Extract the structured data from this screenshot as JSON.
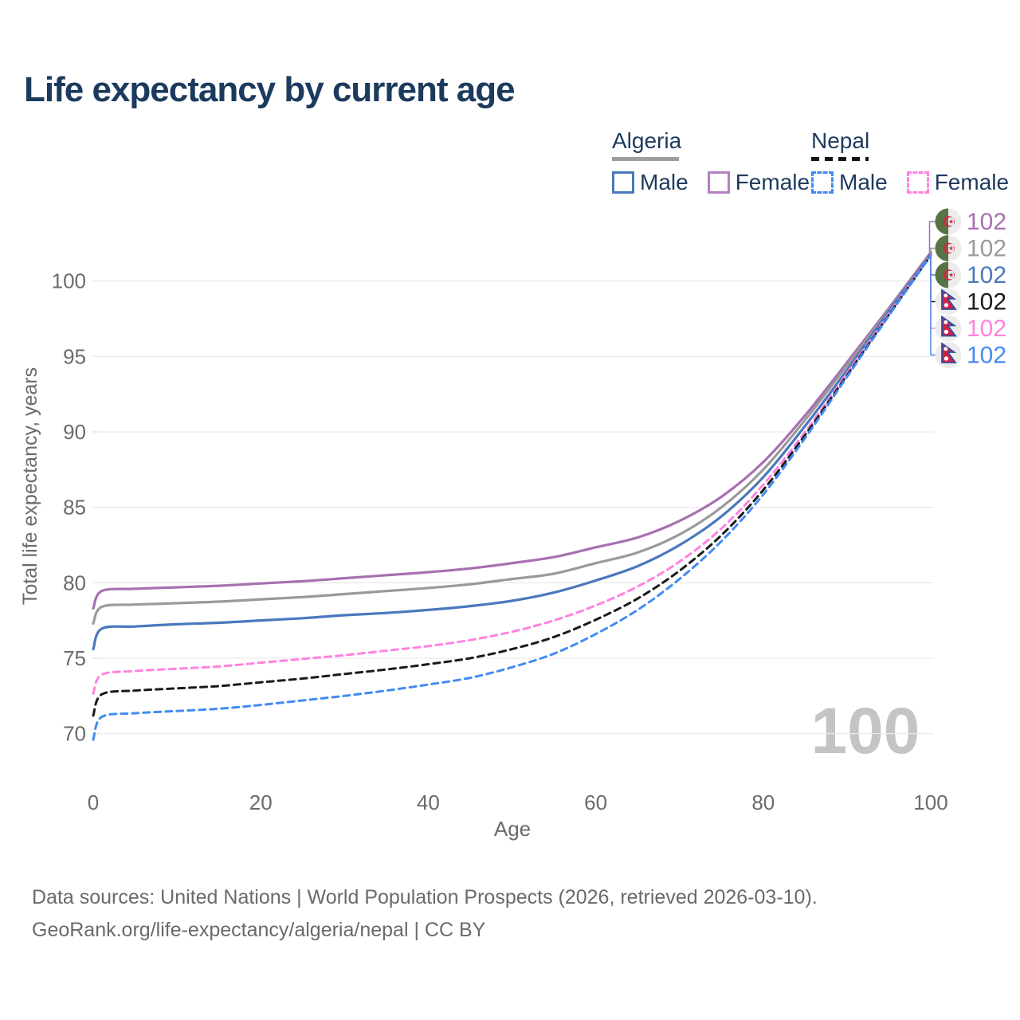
{
  "page": {
    "title": "Life expectancy by current age",
    "watermark_age": "100",
    "footer": {
      "line1": "Data sources: United Nations | World Population Prospects (2026, retrieved 2026-03-10).",
      "line2": "GeoRank.org/life-expectancy/algeria/nepal | CC BY"
    }
  },
  "legend": {
    "groups": [
      {
        "label": "Algeria",
        "underline_style": "solid",
        "underline_color": "#9e9e9e",
        "items": [
          {
            "label": "Male",
            "color": "#4a78bc",
            "dashed": false
          },
          {
            "label": "Female",
            "color": "#b37fc0",
            "dashed": false
          }
        ]
      },
      {
        "label": "Nepal",
        "underline_style": "dashed",
        "underline_color": "#151515",
        "items": [
          {
            "label": "Male",
            "color": "#438bf2",
            "dashed": true
          },
          {
            "label": "Female",
            "color": "#ff82e0",
            "dashed": true
          }
        ]
      }
    ]
  },
  "chart_data": {
    "type": "line",
    "title": "Life expectancy by current age",
    "xlabel": "Age",
    "ylabel": "Total life expectancy, years",
    "x_ticks": [
      0,
      20,
      40,
      60,
      80,
      100
    ],
    "y_ticks": [
      70,
      75,
      80,
      85,
      90,
      95,
      100
    ],
    "x_domain": [
      0,
      100
    ],
    "y_domain": [
      69,
      103
    ],
    "grid": "horizontal-only",
    "legend_position": "top-right",
    "age_counter_watermark": "100",
    "series": [
      {
        "id": "algeria-female",
        "name": "Algeria Female",
        "country": "Algeria",
        "sex": "Female",
        "color": "#a86fb2",
        "dashed": false,
        "end_value_label": "102",
        "points": [
          [
            0,
            78.3
          ],
          [
            1,
            79.45
          ],
          [
            5,
            79.6
          ],
          [
            10,
            79.7
          ],
          [
            15,
            79.8
          ],
          [
            20,
            79.95
          ],
          [
            25,
            80.1
          ],
          [
            30,
            80.3
          ],
          [
            35,
            80.5
          ],
          [
            40,
            80.7
          ],
          [
            45,
            80.95
          ],
          [
            50,
            81.3
          ],
          [
            55,
            81.7
          ],
          [
            60,
            82.35
          ],
          [
            65,
            83.0
          ],
          [
            70,
            84.1
          ],
          [
            75,
            85.7
          ],
          [
            80,
            88.0
          ],
          [
            85,
            91.1
          ],
          [
            90,
            94.6
          ],
          [
            95,
            98.2
          ],
          [
            100,
            101.9
          ]
        ]
      },
      {
        "id": "algeria-both",
        "name": "Algeria (both sexes)",
        "country": "Algeria",
        "sex": "Both",
        "color": "#9a9a9a",
        "dashed": false,
        "end_value_label": "102",
        "points": [
          [
            0,
            77.3
          ],
          [
            1,
            78.4
          ],
          [
            5,
            78.55
          ],
          [
            10,
            78.65
          ],
          [
            15,
            78.75
          ],
          [
            20,
            78.9
          ],
          [
            25,
            79.05
          ],
          [
            30,
            79.25
          ],
          [
            35,
            79.45
          ],
          [
            40,
            79.65
          ],
          [
            45,
            79.9
          ],
          [
            50,
            80.25
          ],
          [
            55,
            80.6
          ],
          [
            60,
            81.3
          ],
          [
            65,
            82.0
          ],
          [
            70,
            83.2
          ],
          [
            75,
            85.0
          ],
          [
            80,
            87.5
          ],
          [
            85,
            90.8
          ],
          [
            90,
            94.4
          ],
          [
            95,
            98.1
          ],
          [
            100,
            101.85
          ]
        ]
      },
      {
        "id": "algeria-male",
        "name": "Algeria Male",
        "country": "Algeria",
        "sex": "Male",
        "color": "#4a78bc",
        "dashed": false,
        "end_value_label": "102",
        "points": [
          [
            0,
            75.6
          ],
          [
            1,
            76.95
          ],
          [
            5,
            77.1
          ],
          [
            10,
            77.25
          ],
          [
            15,
            77.35
          ],
          [
            20,
            77.5
          ],
          [
            25,
            77.65
          ],
          [
            30,
            77.85
          ],
          [
            35,
            78.0
          ],
          [
            40,
            78.2
          ],
          [
            45,
            78.45
          ],
          [
            50,
            78.8
          ],
          [
            55,
            79.35
          ],
          [
            60,
            80.15
          ],
          [
            65,
            81.1
          ],
          [
            70,
            82.5
          ],
          [
            75,
            84.4
          ],
          [
            80,
            87.0
          ],
          [
            85,
            90.4
          ],
          [
            90,
            94.1
          ],
          [
            95,
            98.0
          ],
          [
            100,
            101.8
          ]
        ]
      },
      {
        "id": "nepal-female",
        "name": "Nepal Female",
        "country": "Nepal",
        "sex": "Female",
        "color": "#ff82e0",
        "dashed": true,
        "end_value_label": "102",
        "points": [
          [
            0,
            72.65
          ],
          [
            1,
            73.9
          ],
          [
            5,
            74.15
          ],
          [
            10,
            74.3
          ],
          [
            15,
            74.45
          ],
          [
            20,
            74.7
          ],
          [
            25,
            74.95
          ],
          [
            30,
            75.2
          ],
          [
            35,
            75.5
          ],
          [
            40,
            75.8
          ],
          [
            45,
            76.2
          ],
          [
            50,
            76.75
          ],
          [
            55,
            77.5
          ],
          [
            60,
            78.5
          ],
          [
            65,
            79.75
          ],
          [
            70,
            81.4
          ],
          [
            75,
            83.6
          ],
          [
            80,
            86.5
          ],
          [
            85,
            90.0
          ],
          [
            90,
            93.9
          ],
          [
            95,
            97.85
          ],
          [
            100,
            101.75
          ]
        ]
      },
      {
        "id": "nepal-both",
        "name": "Nepal (both sexes)",
        "country": "Nepal",
        "sex": "Both",
        "color": "#1a1a1a",
        "dashed": true,
        "end_value_label": "102",
        "points": [
          [
            0,
            71.2
          ],
          [
            1,
            72.6
          ],
          [
            5,
            72.85
          ],
          [
            10,
            73.0
          ],
          [
            15,
            73.15
          ],
          [
            20,
            73.4
          ],
          [
            25,
            73.65
          ],
          [
            30,
            73.95
          ],
          [
            35,
            74.25
          ],
          [
            40,
            74.6
          ],
          [
            45,
            75.0
          ],
          [
            50,
            75.6
          ],
          [
            55,
            76.4
          ],
          [
            60,
            77.55
          ],
          [
            65,
            78.95
          ],
          [
            70,
            80.8
          ],
          [
            75,
            83.15
          ],
          [
            80,
            86.15
          ],
          [
            85,
            89.8
          ],
          [
            90,
            93.75
          ],
          [
            95,
            97.75
          ],
          [
            100,
            101.7
          ]
        ]
      },
      {
        "id": "nepal-male",
        "name": "Nepal Male",
        "country": "Nepal",
        "sex": "Male",
        "color": "#438bf2",
        "dashed": true,
        "end_value_label": "102",
        "points": [
          [
            0,
            69.6
          ],
          [
            1,
            71.1
          ],
          [
            5,
            71.35
          ],
          [
            10,
            71.5
          ],
          [
            15,
            71.65
          ],
          [
            20,
            71.9
          ],
          [
            25,
            72.2
          ],
          [
            30,
            72.5
          ],
          [
            35,
            72.85
          ],
          [
            40,
            73.25
          ],
          [
            45,
            73.7
          ],
          [
            50,
            74.4
          ],
          [
            55,
            75.3
          ],
          [
            60,
            76.6
          ],
          [
            65,
            78.2
          ],
          [
            70,
            80.25
          ],
          [
            75,
            82.75
          ],
          [
            80,
            85.85
          ],
          [
            85,
            89.6
          ],
          [
            90,
            93.65
          ],
          [
            95,
            97.7
          ],
          [
            100,
            101.7
          ]
        ]
      }
    ],
    "end_labels": [
      {
        "series": "algeria-female",
        "flag": "algeria",
        "value": "102"
      },
      {
        "series": "algeria-both",
        "flag": "algeria",
        "value": "102"
      },
      {
        "series": "algeria-male",
        "flag": "algeria",
        "value": "102"
      },
      {
        "series": "nepal-both",
        "flag": "nepal",
        "value": "102"
      },
      {
        "series": "nepal-female",
        "flag": "nepal",
        "value": "102"
      },
      {
        "series": "nepal-male",
        "flag": "nepal",
        "value": "102"
      }
    ]
  },
  "colors": {
    "title_text": "#1c3a5e",
    "axis_text": "#6b6b6b",
    "gridline": "#eaeaea",
    "watermark": "#c4c4c4",
    "footer_text": "#6a6a6a",
    "algeria_flag_green": "#567444",
    "algeria_flag_red": "#c62e41",
    "nepal_flag_crimson": "#d41f3f",
    "nepal_flag_blue": "#2c50a8"
  }
}
